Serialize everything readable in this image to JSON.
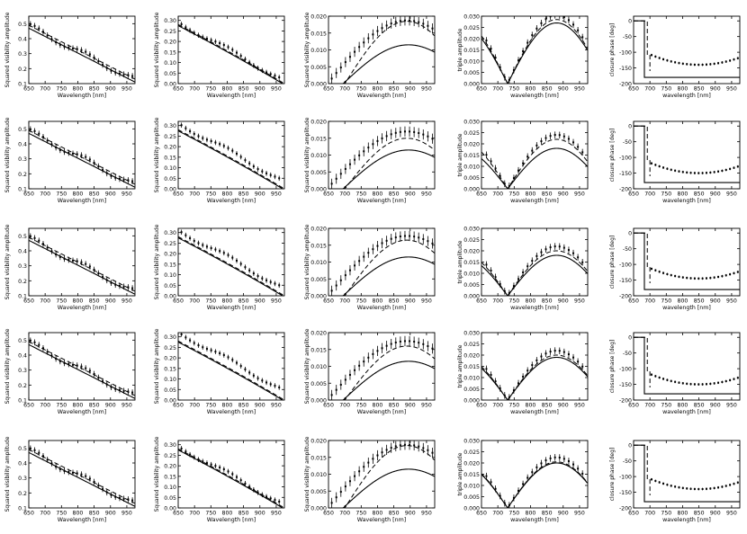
{
  "chart_data": {
    "type": "line",
    "layout": {
      "rows": 5,
      "cols": 5
    },
    "panel_types": [
      {
        "kind": "v2a",
        "ylabel": "Squared visibility amplitude",
        "xlabel": "Wavelength [nm]",
        "xlim": [
          650,
          975
        ],
        "ylim": [
          0.1,
          0.55
        ],
        "yticks": [
          "0.1",
          "0.2",
          "0.3",
          "0.4",
          "0.5"
        ],
        "xticks": [
          "650",
          "700",
          "750",
          "800",
          "850",
          "900",
          "950"
        ]
      },
      {
        "kind": "v2b",
        "ylabel": "Squared visibility amplitude",
        "xlabel": "Wavelength [nm]",
        "xlim": [
          650,
          975
        ],
        "ylim": [
          0.0,
          0.32
        ],
        "yticks": [
          "0.00",
          "0.05",
          "0.10",
          "0.15",
          "0.20",
          "0.25",
          "0.30"
        ],
        "xticks": [
          "650",
          "700",
          "750",
          "800",
          "850",
          "900",
          "950"
        ]
      },
      {
        "kind": "v2c",
        "ylabel": "Squared visibility amplitude",
        "xlabel": "Wavelength [nm]",
        "xlim": [
          650,
          975
        ],
        "ylim": [
          0.0,
          0.02
        ],
        "yticks": [
          "0.000",
          "0.005",
          "0.010",
          "0.015",
          "0.020"
        ],
        "xticks": [
          "650",
          "700",
          "750",
          "800",
          "850",
          "900",
          "950"
        ]
      },
      {
        "kind": "t3amp",
        "ylabel": "triple amplitude",
        "xlabel": "wavelength [nm]",
        "xlim": [
          650,
          975
        ],
        "ylim": [
          0.0,
          0.03
        ],
        "yticks": [
          "0.000",
          "0.005",
          "0.010",
          "0.015",
          "0.020",
          "0.025",
          "0.030"
        ],
        "xticks": [
          "650",
          "700",
          "750",
          "800",
          "850",
          "900",
          "950"
        ]
      },
      {
        "kind": "t3phi",
        "ylabel": "closure phase [deg]",
        "xlabel": "wavelength [nm]",
        "xlim": [
          650,
          975
        ],
        "ylim": [
          -200,
          15
        ],
        "yticks": [
          "0",
          "-50",
          "-100",
          "-150",
          "-200"
        ],
        "xticks": [
          "650",
          "700",
          "750",
          "800",
          "850",
          "900",
          "950"
        ]
      }
    ],
    "row_params": [
      {
        "v2b_gap": 0.01,
        "v2c_dash_peak": 0.0185,
        "t3_dash_peak": 0.0285,
        "t3_solid_peak": 0.027,
        "phi_flat": -180,
        "phi_points_min": -140
      },
      {
        "v2b_gap": 0.03,
        "v2c_dash_peak": 0.015,
        "t3_dash_peak": 0.022,
        "t3_solid_peak": 0.018,
        "phi_flat": -180,
        "phi_points_min": -150
      },
      {
        "v2b_gap": 0.03,
        "v2c_dash_peak": 0.0165,
        "t3_dash_peak": 0.02,
        "t3_solid_peak": 0.018,
        "phi_flat": -180,
        "phi_points_min": -145
      },
      {
        "v2b_gap": 0.04,
        "v2c_dash_peak": 0.016,
        "t3_dash_peak": 0.02,
        "t3_solid_peak": 0.019,
        "phi_flat": -180,
        "phi_points_min": -150
      },
      {
        "v2b_gap": 0.01,
        "v2c_dash_peak": 0.0185,
        "t3_dash_peak": 0.0205,
        "t3_solid_peak": 0.02,
        "phi_flat": -180,
        "phi_points_min": -140
      }
    ],
    "series_styles": {
      "model_dashed": "dashed",
      "model_solid": "solid",
      "data": "points with error bars"
    },
    "grid": false,
    "legend": "none"
  }
}
